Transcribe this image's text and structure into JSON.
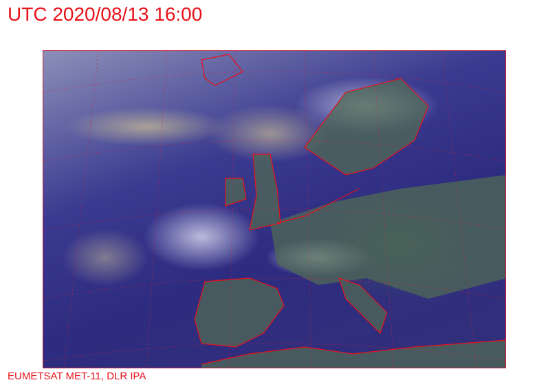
{
  "header": {
    "title": "UTC 2020/08/13 16:00"
  },
  "footer": {
    "credit": "EUMETSAT MET-11, DLR IPA"
  },
  "map": {
    "type": "satellite-rgb-composite",
    "region": "Europe and North Atlantic",
    "coastline_color": "#e8101a",
    "grid_color": "#d02040",
    "text_color": "#e8101a"
  }
}
